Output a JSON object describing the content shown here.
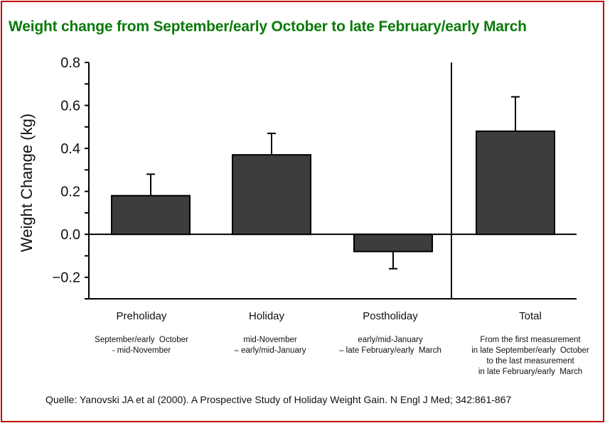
{
  "title": "Weight change from September/early October to late February/early March",
  "source": "Quelle: Yanovski JA et al (2000). A Prospective Study of Holiday Weight Gain. N Engl J Med; 342:861-867",
  "chart_data": {
    "type": "bar",
    "ylabel": "Weight Change (kg)",
    "ylim": [
      -0.3,
      0.8
    ],
    "yticks": [
      -0.2,
      0.0,
      0.2,
      0.4,
      0.6,
      0.8
    ],
    "ytick_labels": [
      "−0.2",
      "0.0",
      "0.2",
      "0.4",
      "0.6",
      "0.8"
    ],
    "categories": [
      "Preholiday",
      "Holiday",
      "Postholiday",
      "Total"
    ],
    "subtitles": [
      "September/early  October\n- mid-November",
      "mid-November\n– early/mid-January",
      "early/mid-January\n– late February/early  March",
      "From the first measurement\nin late September/early  October\nto the last measurement\nin late February/early  March"
    ],
    "values": [
      0.18,
      0.37,
      -0.08,
      0.48
    ],
    "error_upper": [
      0.28,
      0.47,
      -0.16,
      0.64
    ],
    "bar_color": "#3d3d3d",
    "separator_after_category": 3,
    "grid": false
  }
}
